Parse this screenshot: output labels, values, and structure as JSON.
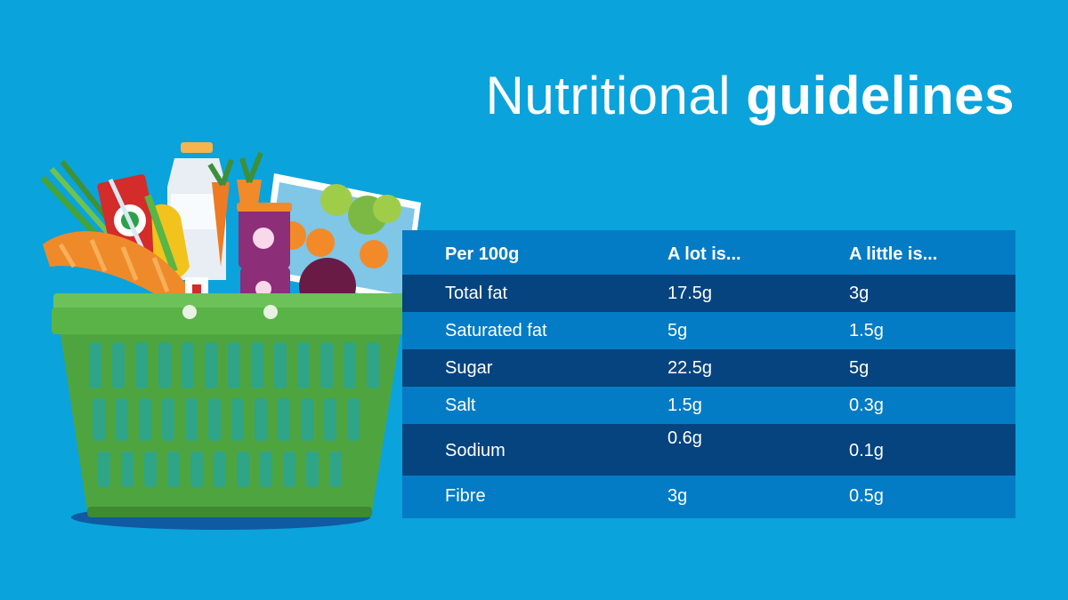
{
  "title": {
    "light": "Nutritional",
    "bold": "guidelines"
  },
  "table": {
    "headers": [
      "Per 100g",
      "A lot is...",
      "A little is..."
    ],
    "rows": [
      [
        "Total fat",
        "17.5g",
        "3g"
      ],
      [
        "Saturated fat",
        "5g",
        "1.5g"
      ],
      [
        "Sugar",
        "22.5g",
        "5g"
      ],
      [
        "Salt",
        "1.5g",
        "0.3g"
      ],
      [
        "Sodium",
        "0.6g",
        "0.1g"
      ],
      [
        "Fibre",
        "3g",
        "0.5g"
      ]
    ]
  },
  "colors": {
    "background": "#0aa3dc",
    "row_light": "#047bc5",
    "row_dark": "#05447f",
    "basket_green": "#4ea540"
  }
}
